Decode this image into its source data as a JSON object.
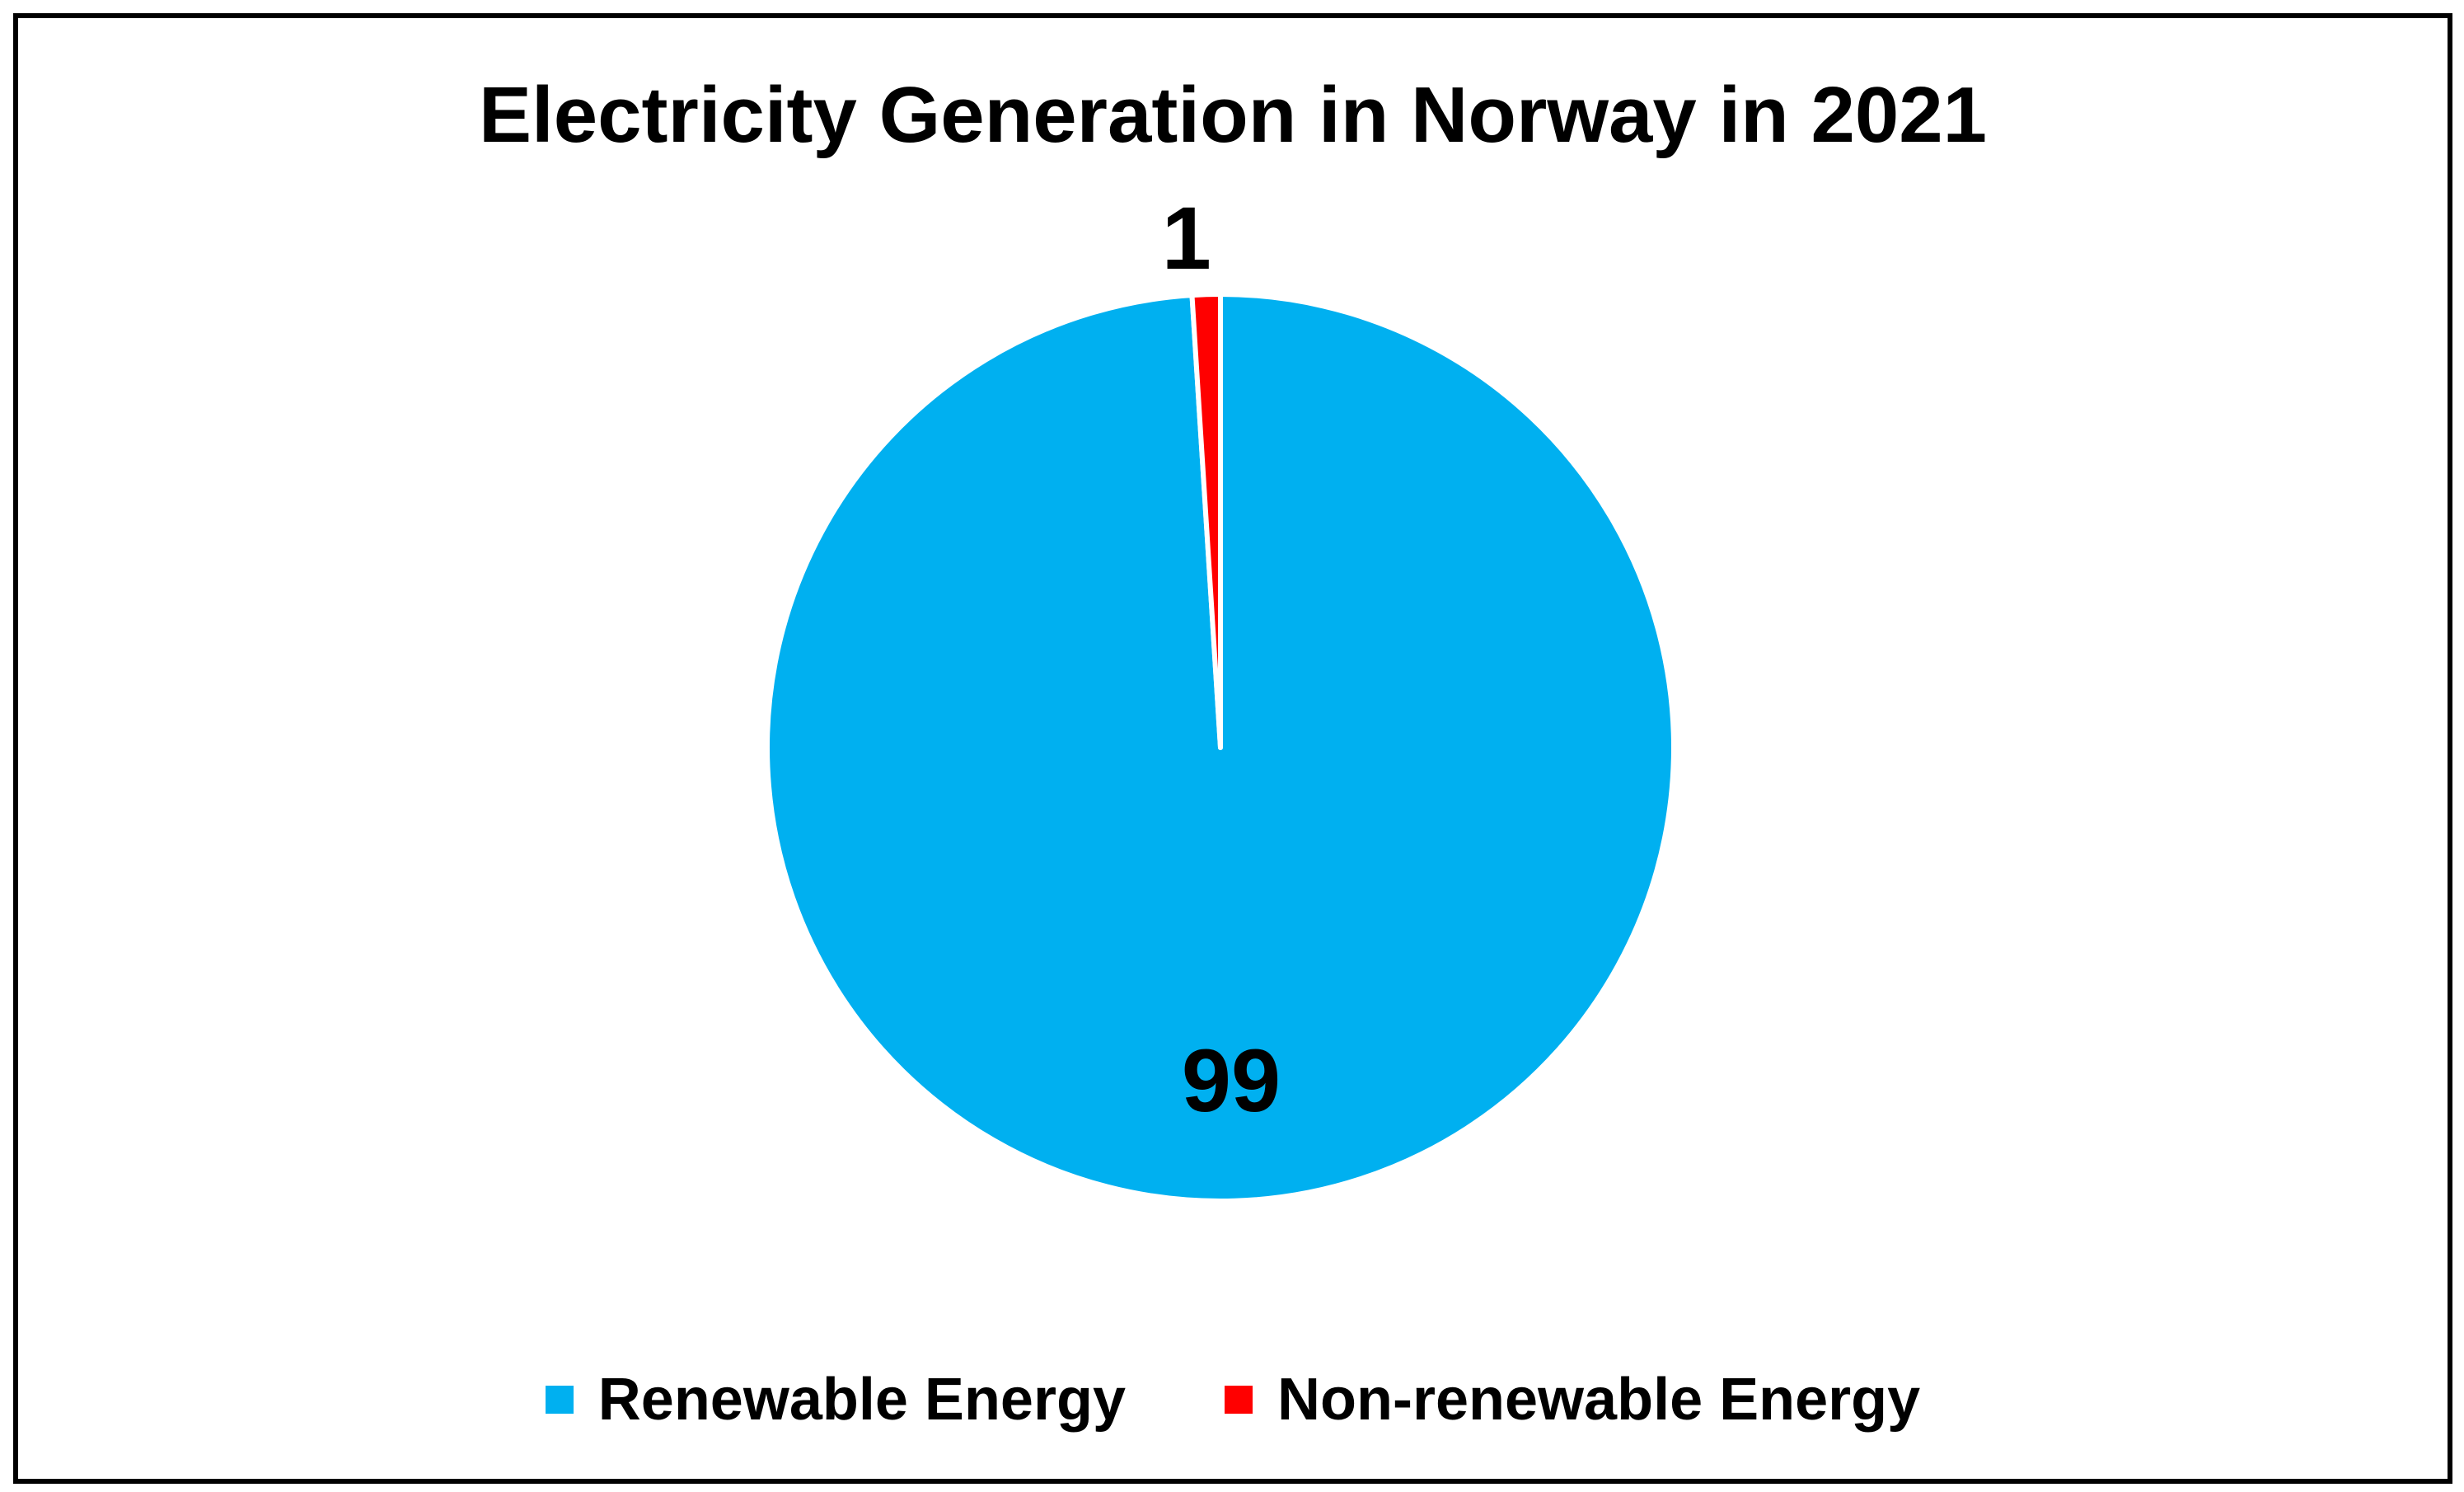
{
  "chart_data": {
    "type": "pie",
    "title": "Electricity Generation in Norway in 2021",
    "categories": [
      "Renewable Energy",
      "Non-renewable Energy"
    ],
    "values": [
      99,
      1
    ],
    "data_labels": [
      "99",
      "1"
    ],
    "colors": [
      "#00B0F0",
      "#FF0000"
    ],
    "legend_position": "bottom"
  },
  "legend": {
    "items": [
      {
        "label": "Renewable Energy",
        "color": "#00B0F0"
      },
      {
        "label": "Non-renewable Energy",
        "color": "#FF0000"
      }
    ]
  }
}
